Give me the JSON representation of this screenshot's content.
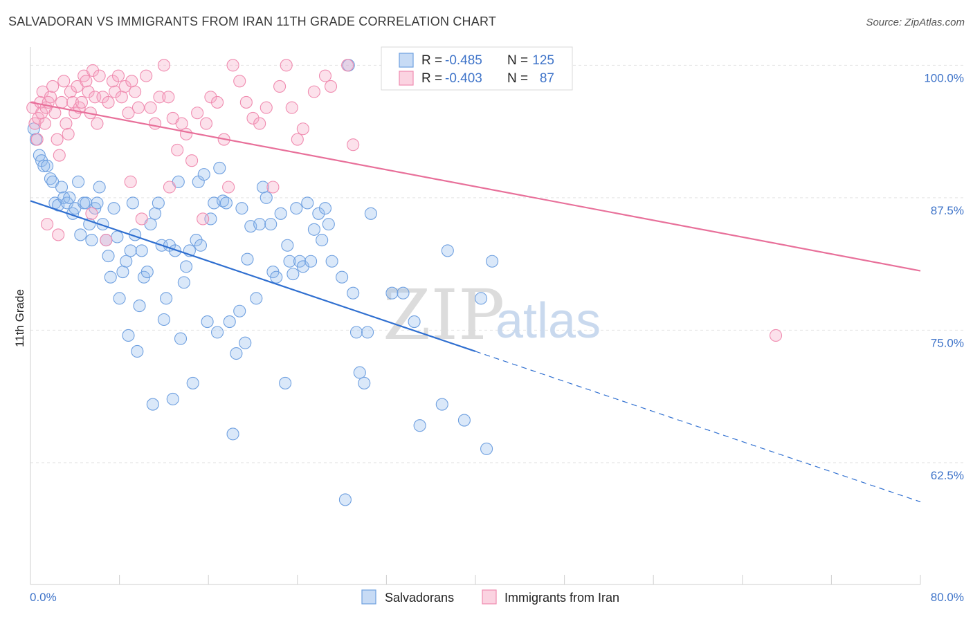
{
  "title": "SALVADORAN VS IMMIGRANTS FROM IRAN 11TH GRADE CORRELATION CHART",
  "source": "Source: ZipAtlas.com",
  "watermark": {
    "part1": "ZIP",
    "part2": "atlas"
  },
  "legend": {
    "r_label": "R =",
    "n_label": "N =",
    "rows": [
      {
        "r": "-0.485",
        "n": "125",
        "color": "#6fa0e0"
      },
      {
        "r": "-0.403",
        "n": "87",
        "color": "#f08cb0"
      }
    ]
  },
  "bottom_legend": [
    "Salvadorans",
    "Immigrants from Iran"
  ],
  "chart_data": {
    "type": "scatter",
    "title": "SALVADORAN VS IMMIGRANTS FROM IRAN 11TH GRADE CORRELATION CHART",
    "xlabel": "",
    "ylabel": "11th Grade",
    "xlim": [
      0,
      80
    ],
    "ylim": [
      51,
      101
    ],
    "x_tick_labels": [
      "0.0%",
      "80.0%"
    ],
    "y_ticks": [
      62.5,
      75.0,
      87.5,
      100.0
    ],
    "y_tick_labels": [
      "62.5%",
      "75.0%",
      "87.5%",
      "100.0%"
    ],
    "grid": true,
    "legend_position": "top-center",
    "series": [
      {
        "name": "Salvadorans",
        "color": "#6fa0e0",
        "line_color": "#2f6fd0",
        "trend": {
          "x0": 0,
          "y0": 87.2,
          "x1": 40,
          "y1": 73.0,
          "dash_to_x": 80,
          "dash_to_y": 58.8
        },
        "points": [
          [
            0.3,
            94.0
          ],
          [
            0.5,
            93.0
          ],
          [
            0.8,
            91.5
          ],
          [
            1.0,
            91.0
          ],
          [
            1.2,
            90.5
          ],
          [
            1.5,
            90.5
          ],
          [
            1.8,
            89.3
          ],
          [
            2.0,
            89.0
          ],
          [
            2.2,
            87.0
          ],
          [
            2.5,
            86.8
          ],
          [
            2.8,
            88.5
          ],
          [
            3.0,
            87.5
          ],
          [
            3.3,
            87.0
          ],
          [
            3.5,
            87.5
          ],
          [
            3.8,
            86.0
          ],
          [
            4.0,
            86.5
          ],
          [
            4.3,
            89.0
          ],
          [
            4.5,
            84.0
          ],
          [
            4.8,
            87.0
          ],
          [
            5.0,
            87.0
          ],
          [
            5.3,
            85.0
          ],
          [
            5.5,
            83.5
          ],
          [
            5.8,
            86.5
          ],
          [
            6.0,
            87.0
          ],
          [
            6.2,
            88.5
          ],
          [
            6.5,
            85.0
          ],
          [
            6.8,
            83.5
          ],
          [
            7.0,
            82.0
          ],
          [
            7.2,
            80.0
          ],
          [
            7.5,
            86.5
          ],
          [
            7.8,
            83.8
          ],
          [
            8.0,
            78.0
          ],
          [
            8.3,
            80.5
          ],
          [
            8.6,
            81.5
          ],
          [
            8.8,
            74.5
          ],
          [
            9.0,
            82.5
          ],
          [
            9.2,
            87.0
          ],
          [
            9.4,
            84.0
          ],
          [
            9.6,
            73.0
          ],
          [
            9.8,
            77.3
          ],
          [
            10.0,
            82.5
          ],
          [
            10.2,
            80.0
          ],
          [
            10.5,
            80.5
          ],
          [
            10.8,
            85.0
          ],
          [
            11.0,
            68.0
          ],
          [
            11.2,
            86.0
          ],
          [
            11.5,
            87.0
          ],
          [
            11.8,
            83.0
          ],
          [
            12.0,
            76.0
          ],
          [
            12.2,
            78.0
          ],
          [
            12.5,
            83.0
          ],
          [
            12.8,
            68.5
          ],
          [
            13.0,
            82.5
          ],
          [
            13.3,
            89.0
          ],
          [
            13.5,
            74.2
          ],
          [
            13.8,
            79.5
          ],
          [
            14.0,
            81.0
          ],
          [
            14.3,
            82.5
          ],
          [
            14.6,
            70.0
          ],
          [
            14.9,
            83.5
          ],
          [
            15.1,
            89.0
          ],
          [
            15.3,
            83.0
          ],
          [
            15.6,
            89.7
          ],
          [
            15.9,
            75.8
          ],
          [
            16.2,
            85.5
          ],
          [
            16.5,
            87.0
          ],
          [
            16.8,
            74.8
          ],
          [
            17.0,
            90.3
          ],
          [
            17.3,
            87.2
          ],
          [
            17.6,
            87.0
          ],
          [
            17.9,
            75.8
          ],
          [
            18.2,
            65.2
          ],
          [
            18.5,
            72.8
          ],
          [
            18.8,
            76.8
          ],
          [
            19.0,
            86.5
          ],
          [
            19.3,
            73.8
          ],
          [
            19.5,
            81.7
          ],
          [
            19.8,
            84.8
          ],
          [
            20.3,
            78.0
          ],
          [
            20.6,
            85.0
          ],
          [
            20.9,
            88.5
          ],
          [
            21.2,
            87.5
          ],
          [
            21.6,
            85.0
          ],
          [
            21.8,
            80.5
          ],
          [
            22.1,
            80.0
          ],
          [
            22.5,
            86.0
          ],
          [
            22.9,
            70.0
          ],
          [
            23.1,
            83.0
          ],
          [
            23.3,
            81.5
          ],
          [
            23.6,
            80.3
          ],
          [
            23.9,
            86.5
          ],
          [
            24.2,
            81.5
          ],
          [
            24.5,
            81.0
          ],
          [
            24.9,
            87.0
          ],
          [
            25.2,
            81.5
          ],
          [
            25.5,
            84.5
          ],
          [
            25.9,
            86.0
          ],
          [
            26.2,
            83.5
          ],
          [
            26.5,
            86.5
          ],
          [
            26.8,
            85.0
          ],
          [
            27.1,
            81.5
          ],
          [
            28.0,
            80.0
          ],
          [
            28.3,
            59.0
          ],
          [
            28.6,
            100.0
          ],
          [
            29.0,
            78.5
          ],
          [
            29.3,
            74.8
          ],
          [
            29.6,
            71.0
          ],
          [
            30.0,
            70.0
          ],
          [
            30.3,
            74.8
          ],
          [
            30.6,
            86.0
          ],
          [
            32.5,
            78.5
          ],
          [
            33.5,
            78.5
          ],
          [
            34.5,
            75.8
          ],
          [
            35.0,
            66.0
          ],
          [
            37.0,
            68.0
          ],
          [
            37.5,
            82.5
          ],
          [
            39.0,
            66.5
          ],
          [
            40.5,
            78.0
          ],
          [
            41.0,
            63.8
          ],
          [
            41.5,
            81.5
          ]
        ]
      },
      {
        "name": "Immigrants from Iran",
        "color": "#f08cb0",
        "line_color": "#e8709a",
        "trend": {
          "x0": 0,
          "y0": 96.5,
          "x1": 80,
          "y1": 80.6
        },
        "points": [
          [
            0.2,
            96.0
          ],
          [
            0.4,
            94.5
          ],
          [
            0.6,
            93.0
          ],
          [
            0.7,
            95.0
          ],
          [
            0.9,
            96.5
          ],
          [
            1.0,
            95.5
          ],
          [
            1.1,
            97.5
          ],
          [
            1.3,
            94.5
          ],
          [
            1.4,
            96.0
          ],
          [
            1.5,
            85.0
          ],
          [
            1.6,
            96.5
          ],
          [
            1.8,
            97.0
          ],
          [
            2.0,
            98.0
          ],
          [
            2.2,
            95.5
          ],
          [
            2.4,
            93.0
          ],
          [
            2.6,
            91.5
          ],
          [
            2.8,
            96.5
          ],
          [
            3.0,
            98.5
          ],
          [
            3.2,
            94.5
          ],
          [
            3.4,
            93.5
          ],
          [
            3.6,
            97.5
          ],
          [
            3.8,
            96.5
          ],
          [
            4.0,
            95.5
          ],
          [
            4.2,
            98.0
          ],
          [
            4.4,
            96.0
          ],
          [
            4.6,
            96.5
          ],
          [
            4.8,
            99.0
          ],
          [
            5.0,
            98.5
          ],
          [
            5.2,
            97.5
          ],
          [
            5.4,
            95.5
          ],
          [
            5.6,
            99.5
          ],
          [
            5.8,
            97.0
          ],
          [
            6.0,
            94.5
          ],
          [
            6.2,
            99.0
          ],
          [
            6.5,
            97.0
          ],
          [
            6.8,
            83.5
          ],
          [
            7.0,
            96.5
          ],
          [
            7.4,
            98.5
          ],
          [
            7.6,
            97.5
          ],
          [
            7.9,
            99.0
          ],
          [
            8.2,
            97.0
          ],
          [
            8.5,
            98.0
          ],
          [
            8.8,
            95.5
          ],
          [
            9.1,
            98.5
          ],
          [
            9.4,
            97.5
          ],
          [
            9.7,
            96.0
          ],
          [
            10.0,
            85.5
          ],
          [
            10.4,
            99.0
          ],
          [
            10.8,
            96.0
          ],
          [
            11.2,
            94.5
          ],
          [
            11.6,
            97.0
          ],
          [
            12.0,
            100.0
          ],
          [
            12.4,
            97.0
          ],
          [
            12.8,
            95.0
          ],
          [
            13.2,
            92.0
          ],
          [
            13.6,
            94.5
          ],
          [
            14.0,
            93.5
          ],
          [
            14.5,
            91.0
          ],
          [
            15.0,
            95.5
          ],
          [
            15.5,
            85.5
          ],
          [
            15.8,
            94.5
          ],
          [
            16.2,
            97.0
          ],
          [
            16.8,
            96.5
          ],
          [
            17.4,
            93.0
          ],
          [
            17.8,
            88.5
          ],
          [
            18.2,
            100.0
          ],
          [
            18.8,
            98.5
          ],
          [
            19.4,
            96.5
          ],
          [
            20.0,
            95.0
          ],
          [
            20.6,
            94.5
          ],
          [
            21.2,
            96.0
          ],
          [
            21.8,
            88.5
          ],
          [
            22.4,
            98.0
          ],
          [
            23.0,
            100.0
          ],
          [
            23.5,
            96.0
          ],
          [
            24.0,
            93.0
          ],
          [
            24.5,
            94.0
          ],
          [
            25.5,
            97.5
          ],
          [
            26.5,
            99.0
          ],
          [
            27.0,
            98.0
          ],
          [
            28.5,
            100.0
          ],
          [
            29.0,
            92.5
          ],
          [
            67.0,
            74.5
          ],
          [
            2.5,
            84.0
          ],
          [
            5.5,
            86.0
          ],
          [
            9.0,
            89.0
          ],
          [
            12.5,
            88.5
          ]
        ]
      }
    ]
  }
}
